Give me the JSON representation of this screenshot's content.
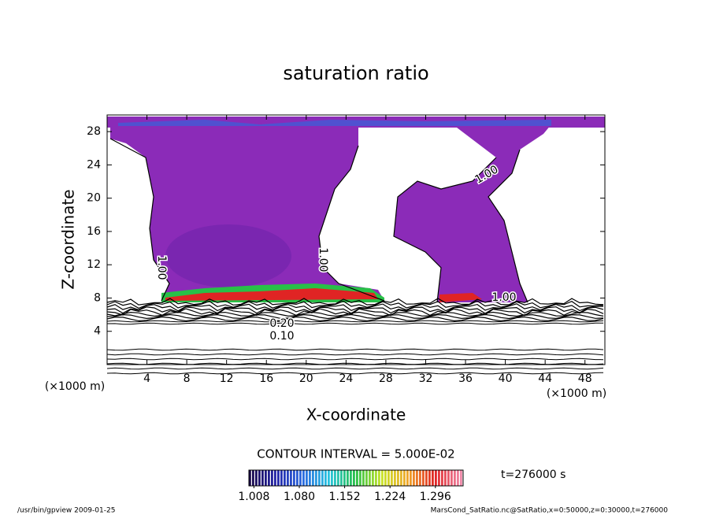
{
  "chart_data": {
    "type": "contour",
    "title": "saturation ratio",
    "xlabel": "X-coordinate",
    "ylabel": "Z-coordinate",
    "xunit": "(×1000 m)",
    "yunit": "(×1000 m)",
    "xlim": [
      0,
      50
    ],
    "xticks": [
      4,
      8,
      12,
      16,
      20,
      24,
      28,
      32,
      36,
      40,
      44,
      48
    ],
    "ylim": [
      0,
      30
    ],
    "yticks": [
      4,
      8,
      12,
      16,
      20,
      24,
      28
    ],
    "contour_labels": [
      "1.00",
      "1.00",
      "1.00",
      "1.00",
      "0.20",
      "0.10"
    ],
    "contour_interval": "CONTOUR INTERVAL = 5.000E-02",
    "time_label": "t=276000 s",
    "colorbar": {
      "clim": [
        1.0,
        1.34
      ],
      "ticks": [
        1.008,
        {
          "value": 1.08,
          "label": "1.080"
        },
        1.152,
        1.224,
        1.296
      ],
      "colors": [
        "#1a0a4a",
        "#2424a8",
        "#2a6ae0",
        "#28c4e0",
        "#28c048",
        "#c8e428",
        "#f0a428",
        "#e02424",
        "#f088a8"
      ]
    },
    "footer_left": "/usr/bin/gpview  2009-01-25",
    "footer_right": "MarsCond_SatRatio.nc@SatRatio,x=0:50000,z=0:30000,t=276000"
  }
}
